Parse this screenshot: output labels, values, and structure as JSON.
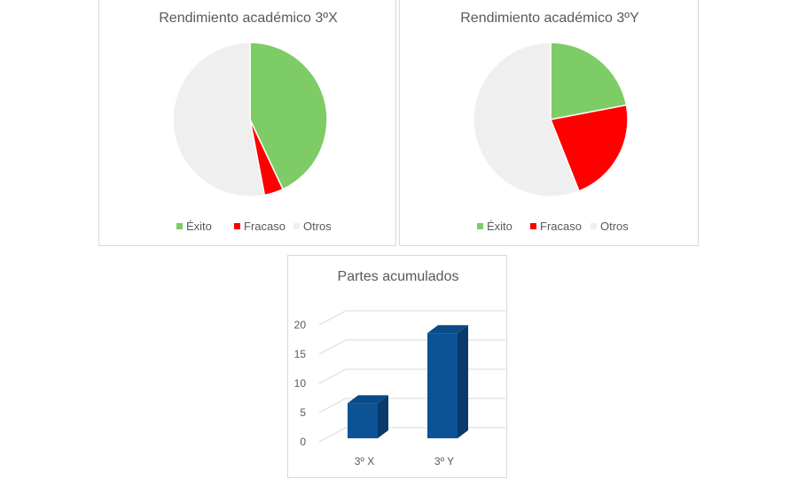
{
  "chart_data": [
    {
      "type": "pie",
      "title": "Rendimiento académico 3ºX",
      "categories": [
        "Éxito",
        "Fracaso",
        "Otros"
      ],
      "values": [
        43,
        4,
        53
      ],
      "colors": [
        "#7dcc66",
        "#ff0000",
        "#efefef"
      ],
      "legend_position": "bottom"
    },
    {
      "type": "pie",
      "title": "Rendimiento académico 3ºY",
      "categories": [
        "Éxito",
        "Fracaso",
        "Otros"
      ],
      "values": [
        22,
        22,
        56
      ],
      "colors": [
        "#7dcc66",
        "#ff0000",
        "#efefef"
      ],
      "legend_position": "bottom"
    },
    {
      "type": "bar",
      "title": "Partes acumulados",
      "categories": [
        "3º X",
        "3º Y"
      ],
      "values": [
        6,
        18
      ],
      "ylim": [
        0,
        20
      ],
      "yticks": [
        0,
        5,
        10,
        15,
        20
      ],
      "grid": true,
      "style": "3d-column",
      "bar_color": "#0b5394"
    }
  ]
}
